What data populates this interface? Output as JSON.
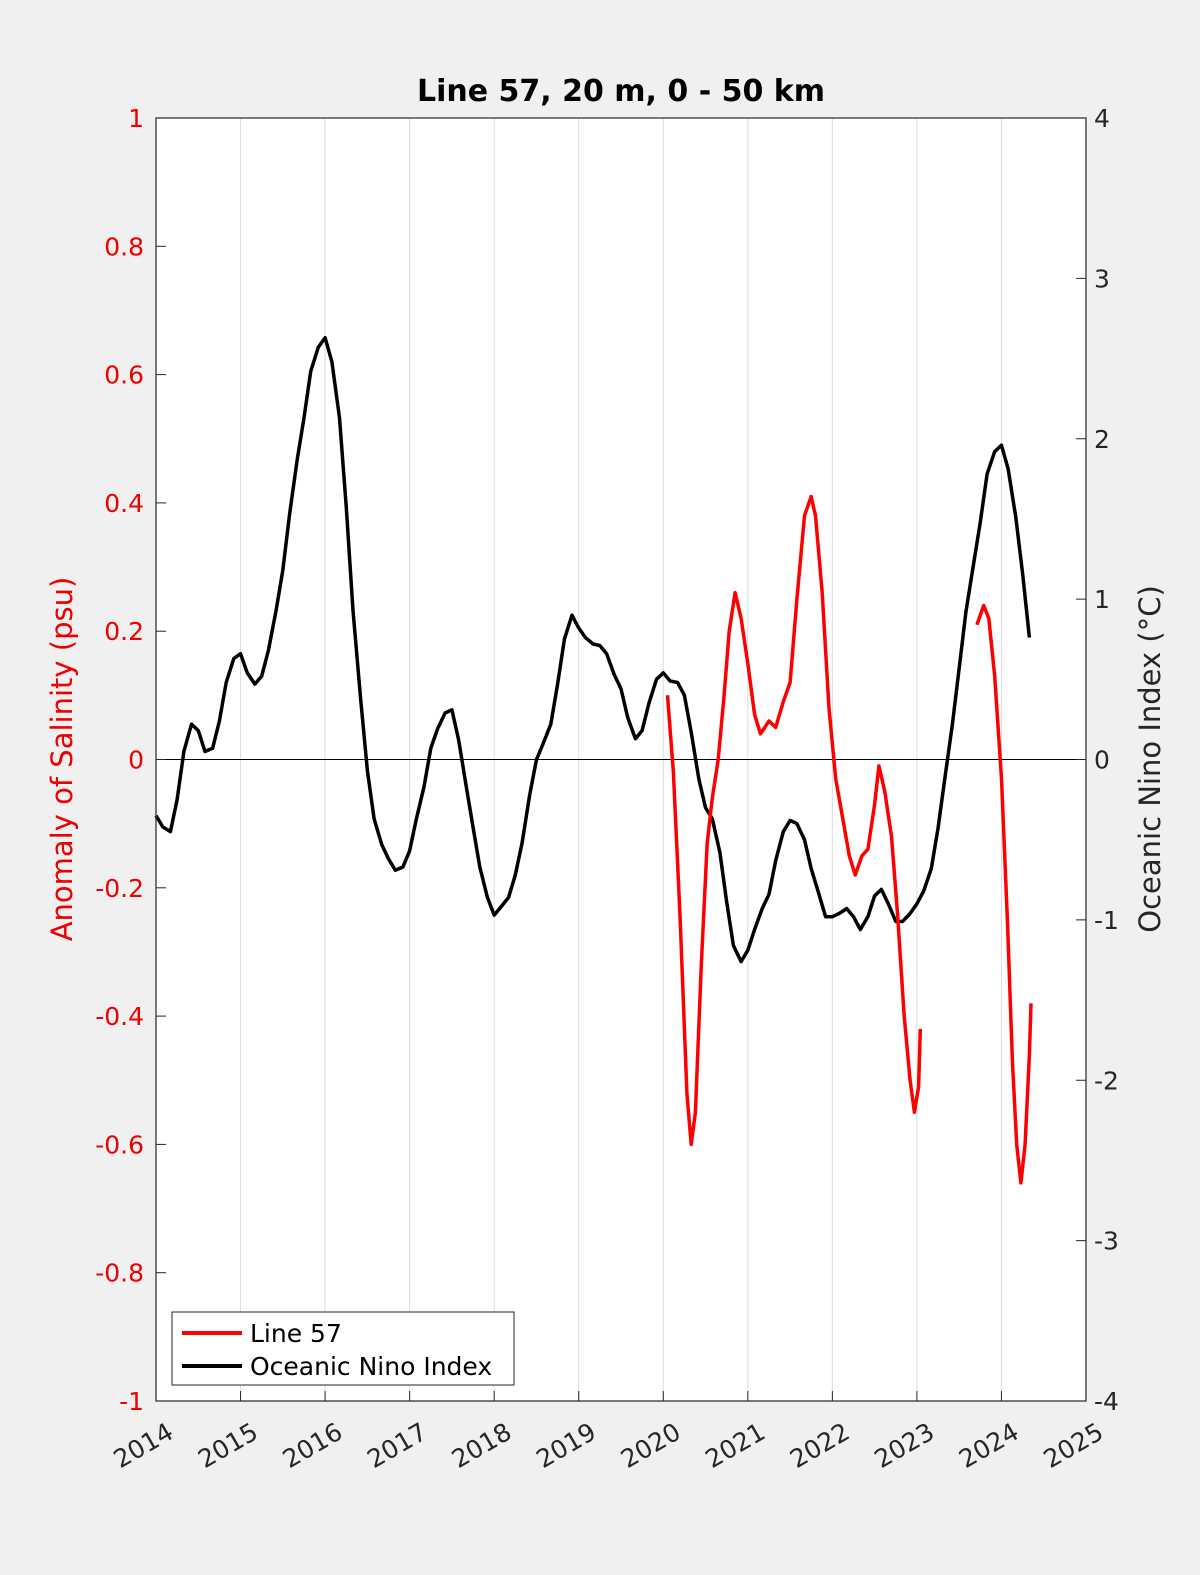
{
  "chart_data": {
    "type": "line",
    "title": "Line 57, 20 m, 0 - 50 km",
    "xlabel": "",
    "ylabel_left": "Anomaly of Salinity (psu)",
    "ylabel_right": "Oceanic Nino Index (°C)",
    "xlim": [
      2014,
      2025
    ],
    "ylim_left": [
      -1,
      1
    ],
    "ylim_right": [
      -4,
      4
    ],
    "x_ticks": [
      "2014",
      "2015",
      "2016",
      "2017",
      "2018",
      "2019",
      "2020",
      "2021",
      "2022",
      "2023",
      "2024",
      "2025"
    ],
    "y_ticks_left": [
      "1",
      "0.8",
      "0.6",
      "0.4",
      "0.2",
      "0",
      "-0.2",
      "-0.4",
      "-0.6",
      "-0.8",
      "-1"
    ],
    "y_ticks_right": [
      "4",
      "3",
      "2",
      "1",
      "0",
      "-1",
      "-2",
      "-3",
      "-4"
    ],
    "grid": "vertical x grid on",
    "legend_position": "bottom-left",
    "colors": {
      "salinity": "#ff0000",
      "oni": "#000000",
      "left_axis": "#ee0000",
      "right_axis": "#262626"
    },
    "series": [
      {
        "name": "Line 57",
        "axis": "left",
        "segments": [
          [
            [
              2020.05,
              0.1
            ],
            [
              2020.12,
              -0.02
            ],
            [
              2020.2,
              -0.25
            ],
            [
              2020.28,
              -0.52
            ],
            [
              2020.33,
              -0.6
            ],
            [
              2020.38,
              -0.55
            ],
            [
              2020.45,
              -0.32
            ],
            [
              2020.52,
              -0.13
            ],
            [
              2020.58,
              -0.06
            ],
            [
              2020.65,
              0.0
            ],
            [
              2020.72,
              0.1
            ],
            [
              2020.78,
              0.2
            ],
            [
              2020.85,
              0.26
            ],
            [
              2020.92,
              0.22
            ],
            [
              2021.0,
              0.15
            ],
            [
              2021.08,
              0.07
            ],
            [
              2021.15,
              0.04
            ],
            [
              2021.25,
              0.06
            ],
            [
              2021.33,
              0.05
            ],
            [
              2021.42,
              0.09
            ],
            [
              2021.5,
              0.12
            ],
            [
              2021.58,
              0.25
            ],
            [
              2021.67,
              0.38
            ],
            [
              2021.75,
              0.41
            ],
            [
              2021.8,
              0.38
            ],
            [
              2021.88,
              0.26
            ],
            [
              2021.96,
              0.08
            ],
            [
              2022.04,
              -0.03
            ],
            [
              2022.12,
              -0.09
            ],
            [
              2022.2,
              -0.15
            ],
            [
              2022.27,
              -0.18
            ],
            [
              2022.35,
              -0.15
            ],
            [
              2022.42,
              -0.14
            ],
            [
              2022.5,
              -0.07
            ],
            [
              2022.55,
              -0.01
            ],
            [
              2022.62,
              -0.05
            ],
            [
              2022.7,
              -0.12
            ],
            [
              2022.77,
              -0.24
            ],
            [
              2022.85,
              -0.4
            ],
            [
              2022.92,
              -0.5
            ],
            [
              2022.97,
              -0.55
            ],
            [
              2023.02,
              -0.51
            ],
            [
              2023.04,
              -0.42
            ]
          ],
          [
            [
              2023.71,
              0.21
            ],
            [
              2023.79,
              0.24
            ],
            [
              2023.85,
              0.22
            ],
            [
              2023.92,
              0.13
            ],
            [
              2024.0,
              -0.03
            ],
            [
              2024.07,
              -0.25
            ],
            [
              2024.13,
              -0.47
            ],
            [
              2024.18,
              -0.6
            ],
            [
              2024.23,
              -0.66
            ],
            [
              2024.28,
              -0.6
            ],
            [
              2024.33,
              -0.46
            ],
            [
              2024.35,
              -0.38
            ]
          ]
        ]
      },
      {
        "name": "Oceanic Nino Index",
        "axis": "right",
        "points": [
          [
            2014.0,
            -0.35
          ],
          [
            2014.08,
            -0.42
          ],
          [
            2014.17,
            -0.45
          ],
          [
            2014.25,
            -0.25
          ],
          [
            2014.33,
            0.05
          ],
          [
            2014.42,
            0.22
          ],
          [
            2014.5,
            0.18
          ],
          [
            2014.58,
            0.05
          ],
          [
            2014.67,
            0.07
          ],
          [
            2014.75,
            0.24
          ],
          [
            2014.83,
            0.48
          ],
          [
            2014.92,
            0.63
          ],
          [
            2015.0,
            0.66
          ],
          [
            2015.08,
            0.54
          ],
          [
            2015.17,
            0.47
          ],
          [
            2015.25,
            0.52
          ],
          [
            2015.33,
            0.68
          ],
          [
            2015.42,
            0.93
          ],
          [
            2015.5,
            1.18
          ],
          [
            2015.58,
            1.53
          ],
          [
            2015.67,
            1.87
          ],
          [
            2015.75,
            2.13
          ],
          [
            2015.83,
            2.42
          ],
          [
            2015.92,
            2.57
          ],
          [
            2016.0,
            2.63
          ],
          [
            2016.08,
            2.48
          ],
          [
            2016.17,
            2.13
          ],
          [
            2016.25,
            1.58
          ],
          [
            2016.33,
            0.93
          ],
          [
            2016.42,
            0.38
          ],
          [
            2016.5,
            -0.07
          ],
          [
            2016.58,
            -0.37
          ],
          [
            2016.67,
            -0.53
          ],
          [
            2016.75,
            -0.62
          ],
          [
            2016.83,
            -0.69
          ],
          [
            2016.92,
            -0.67
          ],
          [
            2017.0,
            -0.57
          ],
          [
            2017.08,
            -0.37
          ],
          [
            2017.17,
            -0.17
          ],
          [
            2017.25,
            0.07
          ],
          [
            2017.33,
            0.19
          ],
          [
            2017.42,
            0.29
          ],
          [
            2017.5,
            0.31
          ],
          [
            2017.58,
            0.12
          ],
          [
            2017.67,
            -0.17
          ],
          [
            2017.75,
            -0.42
          ],
          [
            2017.83,
            -0.67
          ],
          [
            2017.92,
            -0.86
          ],
          [
            2018.0,
            -0.97
          ],
          [
            2018.08,
            -0.92
          ],
          [
            2018.17,
            -0.86
          ],
          [
            2018.25,
            -0.72
          ],
          [
            2018.33,
            -0.52
          ],
          [
            2018.42,
            -0.22
          ],
          [
            2018.5,
            0.0
          ],
          [
            2018.58,
            0.1
          ],
          [
            2018.67,
            0.22
          ],
          [
            2018.75,
            0.47
          ],
          [
            2018.83,
            0.75
          ],
          [
            2018.92,
            0.9
          ],
          [
            2019.0,
            0.82
          ],
          [
            2019.08,
            0.76
          ],
          [
            2019.17,
            0.72
          ],
          [
            2019.25,
            0.71
          ],
          [
            2019.33,
            0.66
          ],
          [
            2019.42,
            0.53
          ],
          [
            2019.5,
            0.44
          ],
          [
            2019.58,
            0.26
          ],
          [
            2019.67,
            0.13
          ],
          [
            2019.75,
            0.18
          ],
          [
            2019.83,
            0.35
          ],
          [
            2019.92,
            0.5
          ],
          [
            2020.0,
            0.54
          ],
          [
            2020.08,
            0.49
          ],
          [
            2020.17,
            0.48
          ],
          [
            2020.25,
            0.4
          ],
          [
            2020.33,
            0.17
          ],
          [
            2020.42,
            -0.12
          ],
          [
            2020.5,
            -0.3
          ],
          [
            2020.58,
            -0.37
          ],
          [
            2020.67,
            -0.58
          ],
          [
            2020.75,
            -0.89
          ],
          [
            2020.83,
            -1.16
          ],
          [
            2020.92,
            -1.26
          ],
          [
            2021.0,
            -1.19
          ],
          [
            2021.08,
            -1.06
          ],
          [
            2021.17,
            -0.93
          ],
          [
            2021.25,
            -0.84
          ],
          [
            2021.33,
            -0.63
          ],
          [
            2021.42,
            -0.45
          ],
          [
            2021.5,
            -0.38
          ],
          [
            2021.58,
            -0.4
          ],
          [
            2021.67,
            -0.5
          ],
          [
            2021.75,
            -0.68
          ],
          [
            2021.83,
            -0.82
          ],
          [
            2021.92,
            -0.98
          ],
          [
            2022.0,
            -0.98
          ],
          [
            2022.08,
            -0.96
          ],
          [
            2022.17,
            -0.93
          ],
          [
            2022.25,
            -0.98
          ],
          [
            2022.33,
            -1.06
          ],
          [
            2022.42,
            -0.98
          ],
          [
            2022.5,
            -0.85
          ],
          [
            2022.58,
            -0.81
          ],
          [
            2022.67,
            -0.91
          ],
          [
            2022.75,
            -1.01
          ],
          [
            2022.83,
            -1.01
          ],
          [
            2022.92,
            -0.96
          ],
          [
            2023.0,
            -0.9
          ],
          [
            2023.08,
            -0.82
          ],
          [
            2023.17,
            -0.68
          ],
          [
            2023.25,
            -0.43
          ],
          [
            2023.33,
            -0.12
          ],
          [
            2023.42,
            0.22
          ],
          [
            2023.5,
            0.57
          ],
          [
            2023.58,
            0.92
          ],
          [
            2023.67,
            1.22
          ],
          [
            2023.75,
            1.48
          ],
          [
            2023.83,
            1.78
          ],
          [
            2023.92,
            1.92
          ],
          [
            2024.0,
            1.96
          ],
          [
            2024.08,
            1.81
          ],
          [
            2024.17,
            1.51
          ],
          [
            2024.25,
            1.16
          ],
          [
            2024.33,
            0.76
          ]
        ]
      }
    ]
  }
}
